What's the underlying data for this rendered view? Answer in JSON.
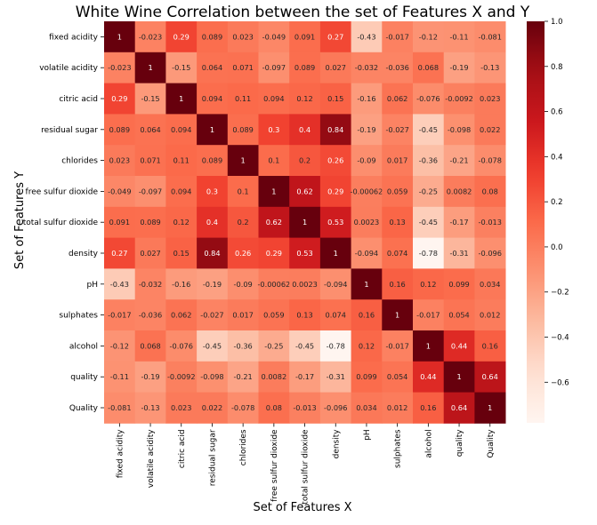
{
  "chart_data": {
    "type": "heatmap",
    "title": "White Wine Correlation between the set of Features X and Y",
    "xlabel": "Set of Features X",
    "ylabel": "Set of Features Y",
    "x_categories": [
      "fixed acidity",
      "volatile acidity",
      "citric acid",
      "residual sugar",
      "chlorides",
      "free sulfur dioxide",
      "total sulfur dioxide",
      "density",
      "pH",
      "sulphates",
      "alcohol",
      "quality",
      "Quality"
    ],
    "y_categories": [
      "fixed acidity",
      "volatile acidity",
      "citric acid",
      "residual sugar",
      "chlorides",
      "free sulfur dioxide",
      "total sulfur dioxide",
      "density",
      "pH",
      "sulphates",
      "alcohol",
      "quality",
      "Quality"
    ],
    "values": [
      [
        1,
        -0.023,
        0.29,
        0.089,
        0.023,
        -0.049,
        0.091,
        0.27,
        -0.43,
        -0.017,
        -0.12,
        -0.11,
        -0.081
      ],
      [
        -0.023,
        1,
        -0.15,
        0.064,
        0.071,
        -0.097,
        0.089,
        0.027,
        -0.032,
        -0.036,
        0.068,
        -0.19,
        -0.13
      ],
      [
        0.29,
        -0.15,
        1,
        0.094,
        0.11,
        0.094,
        0.12,
        0.15,
        -0.16,
        0.062,
        -0.076,
        -0.0092,
        0.023
      ],
      [
        0.089,
        0.064,
        0.094,
        1,
        0.089,
        0.3,
        0.4,
        0.84,
        -0.19,
        -0.027,
        -0.45,
        -0.098,
        0.022
      ],
      [
        0.023,
        0.071,
        0.11,
        0.089,
        1,
        0.1,
        0.2,
        0.26,
        -0.09,
        0.017,
        -0.36,
        -0.21,
        -0.078
      ],
      [
        -0.049,
        -0.097,
        0.094,
        0.3,
        0.1,
        1,
        0.62,
        0.29,
        -0.00062,
        0.059,
        -0.25,
        0.0082,
        0.08
      ],
      [
        0.091,
        0.089,
        0.12,
        0.4,
        0.2,
        0.62,
        1,
        0.53,
        0.0023,
        0.13,
        -0.45,
        -0.17,
        -0.013
      ],
      [
        0.27,
        0.027,
        0.15,
        0.84,
        0.26,
        0.29,
        0.53,
        1,
        -0.094,
        0.074,
        -0.78,
        -0.31,
        -0.096
      ],
      [
        -0.43,
        -0.032,
        -0.16,
        -0.19,
        -0.09,
        -0.00062,
        0.0023,
        -0.094,
        1,
        0.16,
        0.12,
        0.099,
        0.034
      ],
      [
        -0.017,
        -0.036,
        0.062,
        -0.027,
        0.017,
        0.059,
        0.13,
        0.074,
        0.16,
        1,
        -0.017,
        0.054,
        0.012
      ],
      [
        -0.12,
        0.068,
        -0.076,
        -0.45,
        -0.36,
        -0.25,
        -0.45,
        -0.78,
        0.12,
        -0.017,
        1,
        0.44,
        0.16
      ],
      [
        -0.11,
        -0.19,
        -0.0092,
        -0.098,
        -0.21,
        0.0082,
        -0.17,
        -0.31,
        0.099,
        0.054,
        0.44,
        1,
        0.64
      ],
      [
        -0.081,
        -0.13,
        0.023,
        0.022,
        -0.078,
        0.08,
        -0.013,
        -0.096,
        0.034,
        0.012,
        0.16,
        0.64,
        1
      ]
    ],
    "value_labels": [
      [
        "1",
        "-0.023",
        "0.29",
        "0.089",
        "0.023",
        "-0.049",
        "0.091",
        "0.27",
        "-0.43",
        "-0.017",
        "-0.12",
        "-0.11",
        "-0.081"
      ],
      [
        "-0.023",
        "1",
        "-0.15",
        "0.064",
        "0.071",
        "-0.097",
        "0.089",
        "0.027",
        "-0.032",
        "-0.036",
        "0.068",
        "-0.19",
        "-0.13"
      ],
      [
        "0.29",
        "-0.15",
        "1",
        "0.094",
        "0.11",
        "0.094",
        "0.12",
        "0.15",
        "-0.16",
        "0.062",
        "-0.076",
        "-0.0092",
        "0.023"
      ],
      [
        "0.089",
        "0.064",
        "0.094",
        "1",
        "0.089",
        "0.3",
        "0.4",
        "0.84",
        "-0.19",
        "-0.027",
        "-0.45",
        "-0.098",
        "0.022"
      ],
      [
        "0.023",
        "0.071",
        "0.11",
        "0.089",
        "1",
        "0.1",
        "0.2",
        "0.26",
        "-0.09",
        "0.017",
        "-0.36",
        "-0.21",
        "-0.078"
      ],
      [
        "-0.049",
        "-0.097",
        "0.094",
        "0.3",
        "0.1",
        "1",
        "0.62",
        "0.29",
        "-0.00062",
        "0.059",
        "-0.25",
        "0.0082",
        "0.08"
      ],
      [
        "0.091",
        "0.089",
        "0.12",
        "0.4",
        "0.2",
        "0.62",
        "1",
        "0.53",
        "0.0023",
        "0.13",
        "-0.45",
        "-0.17",
        "-0.013"
      ],
      [
        "0.27",
        "0.027",
        "0.15",
        "0.84",
        "0.26",
        "0.29",
        "0.53",
        "1",
        "-0.094",
        "0.074",
        "-0.78",
        "-0.31",
        "-0.096"
      ],
      [
        "-0.43",
        "-0.032",
        "-0.16",
        "-0.19",
        "-0.09",
        "-0.00062",
        "0.0023",
        "-0.094",
        "1",
        "0.16",
        "0.12",
        "0.099",
        "0.034"
      ],
      [
        "-0.017",
        "-0.036",
        "0.062",
        "-0.027",
        "0.017",
        "0.059",
        "0.13",
        "0.074",
        "0.16",
        "1",
        "-0.017",
        "0.054",
        "0.012"
      ],
      [
        "-0.12",
        "0.068",
        "-0.076",
        "-0.45",
        "-0.36",
        "-0.25",
        "-0.45",
        "-0.78",
        "0.12",
        "-0.017",
        "1",
        "0.44",
        "0.16"
      ],
      [
        "-0.11",
        "-0.19",
        "-0.0092",
        "-0.098",
        "-0.21",
        "0.0082",
        "-0.17",
        "-0.31",
        "0.099",
        "0.054",
        "0.44",
        "1",
        "0.64"
      ],
      [
        "-0.081",
        "-0.13",
        "0.023",
        "0.022",
        "-0.078",
        "0.08",
        "-0.013",
        "-0.096",
        "0.034",
        "0.012",
        "0.16",
        "0.64",
        "1"
      ]
    ],
    "colormap": "Reds",
    "vmin": -0.78,
    "vmax": 1.0,
    "colorbar": {
      "ticks": [
        1.0,
        0.8,
        0.6,
        0.4,
        0.2,
        0.0,
        -0.2,
        -0.4,
        -0.6
      ],
      "tick_labels": [
        "1.0",
        "0.8",
        "0.6",
        "0.4",
        "0.2",
        "0.0",
        "−0.2",
        "−0.4",
        "−0.6"
      ],
      "placement": "right"
    },
    "annotations_shown": true,
    "grid": false
  }
}
